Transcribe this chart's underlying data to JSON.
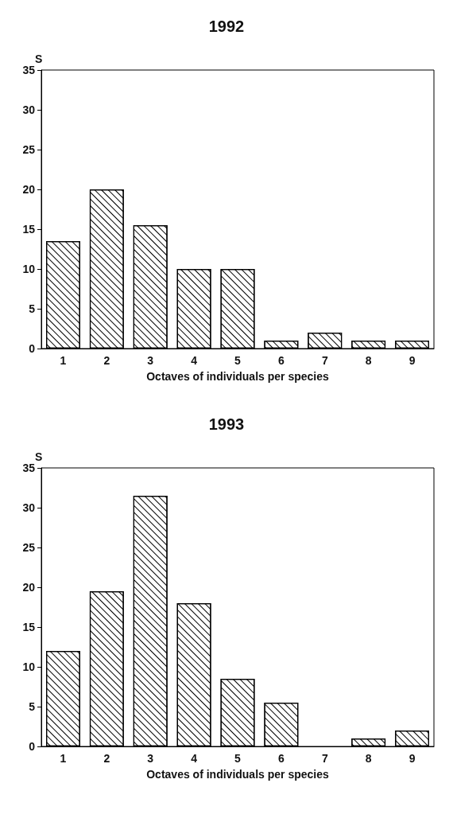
{
  "chart_data": [
    {
      "type": "bar",
      "title": "1992",
      "xlabel": "Octaves of individuals per species",
      "ylabel": "S",
      "categories": [
        "1",
        "2",
        "3",
        "4",
        "5",
        "6",
        "7",
        "8",
        "9"
      ],
      "values": [
        13.5,
        20,
        15.5,
        10,
        10,
        1,
        2,
        1,
        1
      ],
      "color": "#ffffff",
      "ylim": [
        0,
        35
      ],
      "yticks": [
        0,
        5,
        10,
        15,
        20,
        25,
        30,
        35
      ],
      "grid": false
    },
    {
      "type": "bar",
      "title": "1993",
      "xlabel": "Octaves of individuals per species",
      "ylabel": "S",
      "categories": [
        "1",
        "2",
        "3",
        "4",
        "5",
        "6",
        "7",
        "8",
        "9"
      ],
      "values": [
        12,
        19.5,
        31.5,
        18,
        8.5,
        5.5,
        0,
        1,
        2
      ],
      "color": "#ffffff",
      "ylim": [
        0,
        35
      ],
      "yticks": [
        0,
        5,
        10,
        15,
        20,
        25,
        30,
        35
      ],
      "grid": false
    }
  ]
}
